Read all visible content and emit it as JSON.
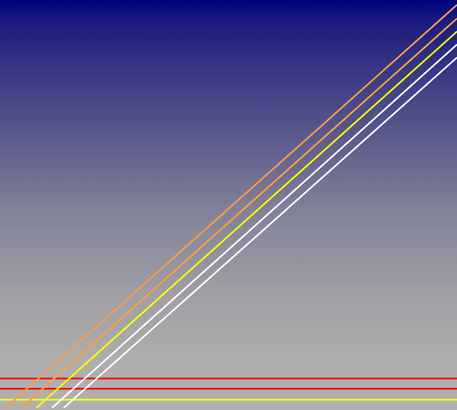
{
  "background": {
    "top_color": "#000080",
    "bottom_color": "#b0b0b0"
  },
  "stripes": {
    "diagonal": [
      {
        "color": "#ff9a50"
      },
      {
        "color": "#ffa040"
      },
      {
        "color": "#ffff00"
      },
      {
        "color": "#ffffff"
      },
      {
        "color": "#ffffff"
      }
    ],
    "horizontal": [
      {
        "color": "#ff0000"
      },
      {
        "color": "#ff0000"
      },
      {
        "color": "#ffff00"
      }
    ]
  }
}
